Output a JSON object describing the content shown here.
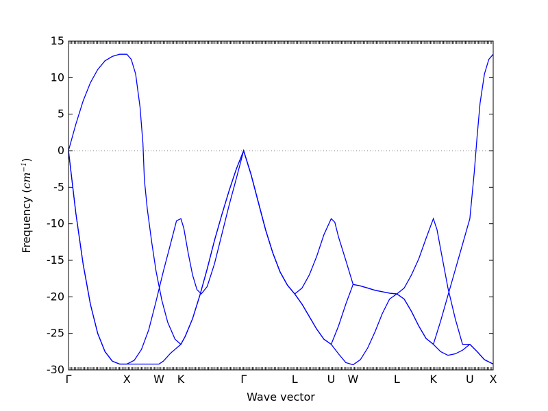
{
  "chart_data": {
    "type": "line",
    "xlabel": "Wave vector",
    "ylabel": "Frequency (cm⁻¹)",
    "ylabel_main": "Frequency (",
    "ylabel_unit": "cm",
    "ylabel_exp": "−1",
    "ylabel_close": ")",
    "ylim": [
      -30,
      15
    ],
    "yticks": [
      15,
      10,
      5,
      0,
      -5,
      -10,
      -15,
      -20,
      -25,
      -30
    ],
    "xlim": [
      0,
      5.82
    ],
    "xticks": [
      {
        "label": "Γ",
        "x": 0
      },
      {
        "label": "X",
        "x": 0.8
      },
      {
        "label": "W",
        "x": 1.24
      },
      {
        "label": "K",
        "x": 1.54
      },
      {
        "label": "Γ",
        "x": 2.4
      },
      {
        "label": "L",
        "x": 3.1
      },
      {
        "label": "U",
        "x": 3.6
      },
      {
        "label": "W",
        "x": 3.9
      },
      {
        "label": "L",
        "x": 4.5
      },
      {
        "label": "K",
        "x": 5.0
      },
      {
        "label": "U",
        "x": 5.5
      },
      {
        "label": "X",
        "x": 5.82
      }
    ],
    "reference_line": {
      "y": 0,
      "style": "dotted",
      "color": "#808080"
    },
    "grid": false,
    "series": [
      {
        "color": "#0000ff",
        "points": [
          [
            0,
            0
          ],
          [
            0.1,
            3.6
          ],
          [
            0.2,
            6.8
          ],
          [
            0.3,
            9.3
          ],
          [
            0.4,
            11.1
          ],
          [
            0.5,
            12.3
          ],
          [
            0.6,
            12.9
          ],
          [
            0.7,
            13.2
          ],
          [
            0.8,
            13.2
          ],
          [
            0.86,
            12.5
          ],
          [
            0.92,
            10.5
          ],
          [
            0.98,
            6
          ],
          [
            1.02,
            1
          ],
          [
            1.04,
            -4
          ],
          [
            1.08,
            -8
          ],
          [
            1.14,
            -12.5
          ],
          [
            1.2,
            -16.5
          ],
          [
            1.28,
            -20.5
          ],
          [
            1.36,
            -23.5
          ],
          [
            1.46,
            -25.8
          ],
          [
            1.54,
            -26.5
          ],
          [
            1.6,
            -25.4
          ],
          [
            1.7,
            -23
          ],
          [
            1.8,
            -19.8
          ],
          [
            1.9,
            -16.2
          ],
          [
            2.0,
            -12.3
          ],
          [
            2.1,
            -8.8
          ],
          [
            2.2,
            -5.5
          ],
          [
            2.3,
            -2.5
          ],
          [
            2.4,
            0
          ],
          [
            2.5,
            -3.2
          ],
          [
            2.6,
            -7
          ],
          [
            2.7,
            -10.8
          ],
          [
            2.8,
            -14
          ],
          [
            2.9,
            -16.6
          ],
          [
            3.0,
            -18.4
          ],
          [
            3.1,
            -19.6
          ],
          [
            3.2,
            -21
          ],
          [
            3.3,
            -22.7
          ],
          [
            3.4,
            -24.4
          ],
          [
            3.5,
            -25.8
          ],
          [
            3.6,
            -26.5
          ],
          [
            3.7,
            -27.8
          ],
          [
            3.8,
            -29
          ],
          [
            3.9,
            -29.3
          ],
          [
            4.0,
            -28.6
          ],
          [
            4.1,
            -27
          ],
          [
            4.2,
            -24.8
          ],
          [
            4.3,
            -22.3
          ],
          [
            4.4,
            -20.3
          ],
          [
            4.5,
            -19.6
          ],
          [
            4.6,
            -20.3
          ],
          [
            4.7,
            -22
          ],
          [
            4.8,
            -24
          ],
          [
            4.9,
            -25.7
          ],
          [
            5.0,
            -26.5
          ],
          [
            5.1,
            -27.5
          ],
          [
            5.2,
            -28
          ],
          [
            5.3,
            -27.8
          ],
          [
            5.4,
            -27.3
          ],
          [
            5.5,
            -26.5
          ],
          [
            5.6,
            -27.5
          ],
          [
            5.7,
            -28.6
          ],
          [
            5.82,
            -29.2
          ]
        ]
      },
      {
        "color": "#0000ff",
        "points": [
          [
            0,
            0
          ],
          [
            0.1,
            -8.5
          ],
          [
            0.2,
            -15.5
          ],
          [
            0.3,
            -21
          ],
          [
            0.4,
            -25
          ],
          [
            0.5,
            -27.5
          ],
          [
            0.6,
            -28.8
          ],
          [
            0.7,
            -29.2
          ],
          [
            0.8,
            -29.2
          ],
          [
            0.9,
            -29.2
          ],
          [
            1.0,
            -29.2
          ],
          [
            1.1,
            -29.2
          ],
          [
            1.24,
            -29.2
          ],
          [
            1.3,
            -28.8
          ],
          [
            1.4,
            -27.7
          ],
          [
            1.54,
            -26.5
          ],
          [
            1.6,
            -25.4
          ],
          [
            1.7,
            -23
          ],
          [
            1.8,
            -19.8
          ],
          [
            1.9,
            -16.2
          ],
          [
            2.0,
            -12.3
          ],
          [
            2.1,
            -8.8
          ],
          [
            2.2,
            -5.5
          ],
          [
            2.3,
            -2.5
          ],
          [
            2.4,
            0
          ],
          [
            2.5,
            -3.2
          ],
          [
            2.6,
            -7
          ],
          [
            2.7,
            -10.8
          ],
          [
            2.8,
            -14
          ],
          [
            2.9,
            -16.6
          ],
          [
            3.0,
            -18.4
          ],
          [
            3.1,
            -19.6
          ],
          [
            3.2,
            -18.8
          ],
          [
            3.3,
            -17
          ],
          [
            3.4,
            -14.5
          ],
          [
            3.5,
            -11.5
          ],
          [
            3.6,
            -9.3
          ],
          [
            3.65,
            -9.8
          ],
          [
            3.7,
            -11.8
          ],
          [
            3.8,
            -15
          ],
          [
            3.9,
            -18.3
          ],
          [
            4.0,
            -18.5
          ],
          [
            4.1,
            -18.8
          ],
          [
            4.2,
            -19.1
          ],
          [
            4.3,
            -19.3
          ],
          [
            4.4,
            -19.5
          ],
          [
            4.5,
            -19.6
          ],
          [
            4.6,
            -18.8
          ],
          [
            4.7,
            -17
          ],
          [
            4.8,
            -14.8
          ],
          [
            4.9,
            -12
          ],
          [
            5.0,
            -9.3
          ],
          [
            5.05,
            -10.8
          ],
          [
            5.1,
            -13.5
          ],
          [
            5.2,
            -18.8
          ],
          [
            5.3,
            -23
          ],
          [
            5.4,
            -26.5
          ],
          [
            5.5,
            -26.5
          ],
          [
            5.6,
            -27.5
          ],
          [
            5.7,
            -28.6
          ],
          [
            5.82,
            -29.2
          ]
        ]
      },
      {
        "color": "#0000ff",
        "points": [
          [
            0,
            0
          ],
          [
            0.1,
            -8.5
          ],
          [
            0.2,
            -15.5
          ],
          [
            0.3,
            -21
          ],
          [
            0.4,
            -25
          ],
          [
            0.5,
            -27.5
          ],
          [
            0.6,
            -28.8
          ],
          [
            0.7,
            -29.2
          ],
          [
            0.8,
            -29.2
          ],
          [
            0.9,
            -28.7
          ],
          [
            1.0,
            -27.2
          ],
          [
            1.1,
            -24.5
          ],
          [
            1.2,
            -20.6
          ],
          [
            1.3,
            -16.5
          ],
          [
            1.4,
            -12.7
          ],
          [
            1.48,
            -9.6
          ],
          [
            1.54,
            -9.3
          ],
          [
            1.58,
            -10.6
          ],
          [
            1.64,
            -14
          ],
          [
            1.7,
            -17
          ],
          [
            1.76,
            -19
          ],
          [
            1.82,
            -19.6
          ],
          [
            1.9,
            -18.6
          ],
          [
            2.0,
            -15.5
          ],
          [
            2.1,
            -11.5
          ],
          [
            2.2,
            -7.5
          ],
          [
            2.3,
            -3.8
          ],
          [
            2.4,
            0
          ],
          [
            2.5,
            -3.2
          ],
          [
            2.6,
            -7
          ],
          [
            2.7,
            -10.8
          ],
          [
            2.8,
            -14
          ],
          [
            2.9,
            -16.6
          ],
          [
            3.0,
            -18.4
          ],
          [
            3.1,
            -19.6
          ],
          [
            3.2,
            -21
          ],
          [
            3.3,
            -22.7
          ],
          [
            3.4,
            -24.4
          ],
          [
            3.5,
            -25.8
          ],
          [
            3.6,
            -26.5
          ],
          [
            3.7,
            -24
          ],
          [
            3.8,
            -21
          ],
          [
            3.9,
            -18.3
          ],
          [
            4.0,
            -18.5
          ],
          [
            4.1,
            -18.8
          ],
          [
            4.2,
            -19.1
          ],
          [
            4.3,
            -19.3
          ],
          [
            4.4,
            -19.5
          ],
          [
            4.5,
            -19.6
          ],
          [
            4.6,
            -20.3
          ],
          [
            4.7,
            -22
          ],
          [
            4.8,
            -24
          ],
          [
            4.9,
            -25.7
          ],
          [
            5.0,
            -26.5
          ],
          [
            5.1,
            -23.3
          ],
          [
            5.2,
            -19.8
          ],
          [
            5.3,
            -16.3
          ],
          [
            5.4,
            -12.8
          ],
          [
            5.5,
            -9.3
          ],
          [
            5.56,
            -3
          ],
          [
            5.6,
            2
          ],
          [
            5.64,
            6.5
          ],
          [
            5.7,
            10.5
          ],
          [
            5.76,
            12.5
          ],
          [
            5.82,
            13.2
          ]
        ]
      }
    ]
  }
}
